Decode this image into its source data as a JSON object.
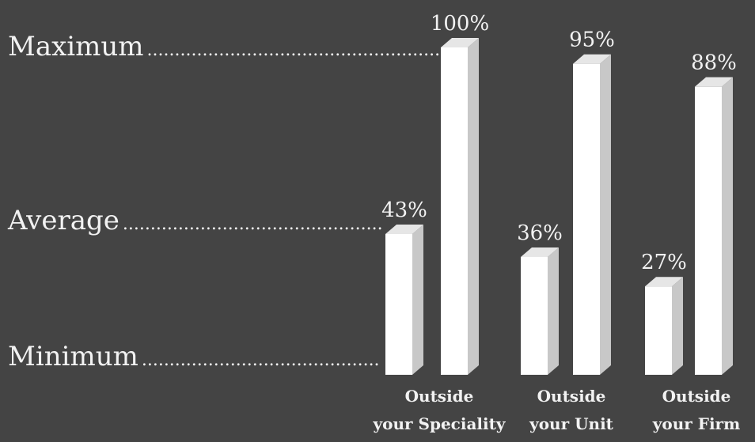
{
  "chart_data": {
    "type": "bar",
    "title": "",
    "xlabel": "",
    "ylabel": "",
    "ylim": [
      0,
      100
    ],
    "categories": [
      {
        "line1": "Outside",
        "line2": "your Speciality"
      },
      {
        "line1": "Outside",
        "line2": "your Unit"
      },
      {
        "line1": "Outside",
        "line2": "your Firm"
      }
    ],
    "series": [
      {
        "values": [
          43,
          36,
          27
        ],
        "labels": [
          "43%",
          "36%",
          "27%"
        ]
      },
      {
        "values": [
          100,
          95,
          88
        ],
        "labels": [
          "100%",
          "95%",
          "88%"
        ]
      }
    ],
    "reference_levels": [
      {
        "label": "Maximum",
        "value": 100
      },
      {
        "label": "Average",
        "value": 43
      },
      {
        "label": "Minimum",
        "value": 0
      }
    ],
    "colors": {
      "background": "#444444",
      "bar_front": "#ffffff",
      "bar_side": "#c8c8c8",
      "bar_top": "#e6e6e6",
      "text": "#f2f2f2"
    }
  }
}
